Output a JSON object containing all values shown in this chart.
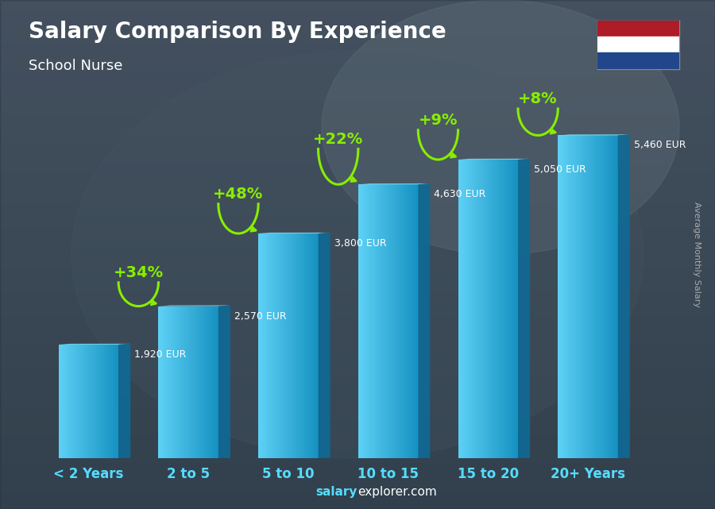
{
  "title": "Salary Comparison By Experience",
  "subtitle": "School Nurse",
  "ylabel": "Average Monthly Salary",
  "categories": [
    "< 2 Years",
    "2 to 5",
    "5 to 10",
    "10 to 15",
    "15 to 20",
    "20+ Years"
  ],
  "values": [
    1920,
    2570,
    3800,
    4630,
    5050,
    5460
  ],
  "value_labels": [
    "1,920 EUR",
    "2,570 EUR",
    "3,800 EUR",
    "4,630 EUR",
    "5,050 EUR",
    "5,460 EUR"
  ],
  "pct_changes": [
    "+34%",
    "+48%",
    "+22%",
    "+9%",
    "+8%"
  ],
  "bar_front_color": "#29b8e8",
  "bar_left_color": "#5dd0f5",
  "bar_right_color": "#1490c0",
  "bar_top_color": "#40c8f0",
  "bg_color_top": "#6a8090",
  "bg_color_bottom": "#3a4a55",
  "title_color": "#ffffff",
  "subtitle_color": "#ffffff",
  "value_label_color": "#ffffff",
  "pct_color": "#88ee00",
  "arrow_color": "#88ee00",
  "tick_color": "#55ddff",
  "salary_bold_color": "#55ddff",
  "salary_normal_color": "#ffffff",
  "right_label_color": "#cccccc",
  "flag_colors": [
    "#ae1c28",
    "#ffffff",
    "#21468b"
  ],
  "ylim_max": 6200,
  "bar_width": 0.6,
  "bar_depth": 0.12
}
